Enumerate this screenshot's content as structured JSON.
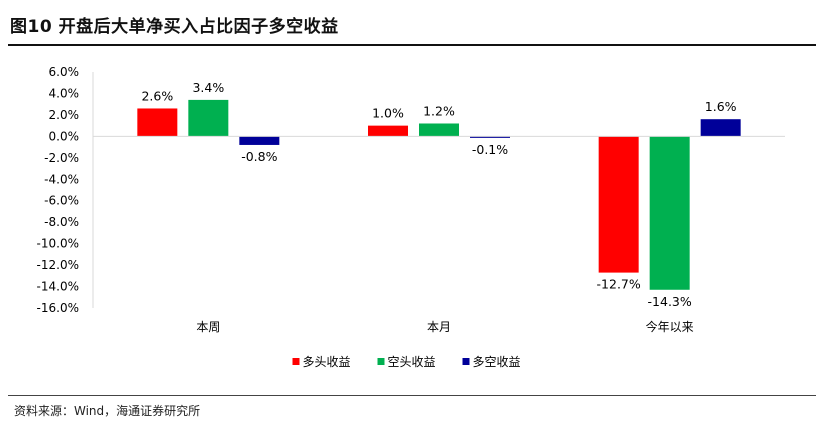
{
  "figure_title": "图10 开盘后大单净买入占比因子多空收益",
  "source_note": "资料来源：Wind，海通证券研究所",
  "chart_data": {
    "type": "bar",
    "categories": [
      "本周",
      "本月",
      "今年以来"
    ],
    "series": [
      {
        "name": "多头收益",
        "values": [
          2.6,
          1.0,
          -12.7
        ],
        "labels": [
          "2.6%",
          "1.0%",
          "-12.7%"
        ],
        "color": "#ff0000"
      },
      {
        "name": "空头收益",
        "values": [
          3.4,
          1.2,
          -14.3
        ],
        "labels": [
          "3.4%",
          "1.2%",
          "-14.3%"
        ],
        "color": "#00b050"
      },
      {
        "name": "多空收益",
        "values": [
          -0.8,
          -0.1,
          1.6
        ],
        "labels": [
          "-0.8%",
          "-0.1%",
          "1.6%"
        ],
        "color": "#000099"
      }
    ],
    "ylim": [
      -16,
      6
    ],
    "yticks": [
      6,
      4,
      2,
      0,
      -2,
      -4,
      -6,
      -8,
      -10,
      -12,
      -14,
      -16
    ],
    "ytick_labels": [
      "6.0%",
      "4.0%",
      "2.0%",
      "0.0%",
      "-2.0%",
      "-4.0%",
      "-6.0%",
      "-8.0%",
      "-10.0%",
      "-12.0%",
      "-14.0%",
      "-16.0%"
    ],
    "xlabel": "",
    "ylabel": "",
    "grid": false,
    "legend_position": "bottom"
  }
}
